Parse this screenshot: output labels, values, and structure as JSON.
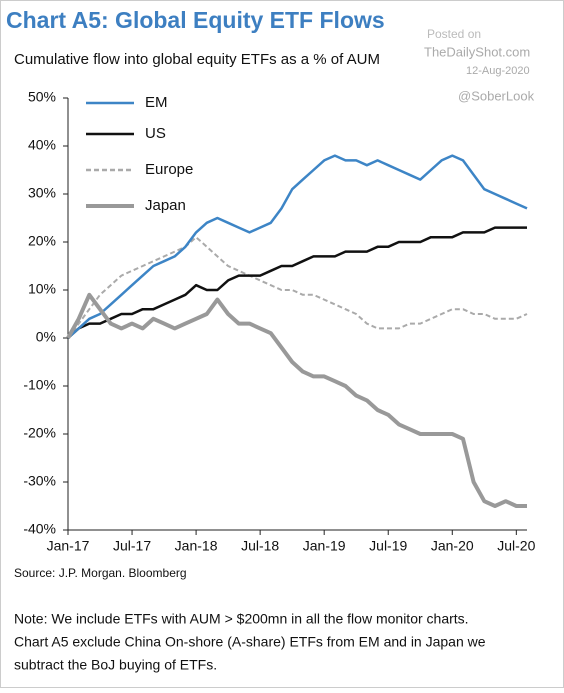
{
  "chart_data": {
    "type": "line",
    "title": "Chart A5: Global Equity ETF Flows",
    "subtitle": "Cumulative flow into global equity ETFs as a % of AUM",
    "watermark": [
      "Posted on",
      "TheDailyShot.com",
      "12-Aug-2020",
      "@SoberLook"
    ],
    "source": "Source: J.P. Morgan. Bloomberg",
    "note": [
      "Note: We include ETFs with AUM > $200mn in all the flow monitor charts.",
      "Chart A5 exclude China On-shore (A-share) ETFs from EM and in Japan we",
      "subtract the BoJ buying of ETFs."
    ],
    "x": [
      "2017-01",
      "2017-02",
      "2017-03",
      "2017-04",
      "2017-05",
      "2017-06",
      "2017-07",
      "2017-08",
      "2017-09",
      "2017-10",
      "2017-11",
      "2017-12",
      "2018-01",
      "2018-02",
      "2018-03",
      "2018-04",
      "2018-05",
      "2018-06",
      "2018-07",
      "2018-08",
      "2018-09",
      "2018-10",
      "2018-11",
      "2018-12",
      "2019-01",
      "2019-02",
      "2019-03",
      "2019-04",
      "2019-05",
      "2019-06",
      "2019-07",
      "2019-08",
      "2019-09",
      "2019-10",
      "2019-11",
      "2019-12",
      "2020-01",
      "2020-02",
      "2020-03",
      "2020-04",
      "2020-05",
      "2020-06",
      "2020-07",
      "2020-08"
    ],
    "xlim": [
      "2017-01",
      "2020-08"
    ],
    "xticks": [
      {
        "value": "2017-01",
        "label": "Jan-17"
      },
      {
        "value": "2017-07",
        "label": "Jul-17"
      },
      {
        "value": "2018-01",
        "label": "Jan-18"
      },
      {
        "value": "2018-07",
        "label": "Jul-18"
      },
      {
        "value": "2019-01",
        "label": "Jan-19"
      },
      {
        "value": "2019-07",
        "label": "Jul-19"
      },
      {
        "value": "2020-01",
        "label": "Jan-20"
      },
      {
        "value": "2020-07",
        "label": "Jul-20"
      }
    ],
    "ylim": [
      -40,
      50
    ],
    "yticks": [
      {
        "value": 50,
        "label": "50%"
      },
      {
        "value": 40,
        "label": "40%"
      },
      {
        "value": 30,
        "label": "30%"
      },
      {
        "value": 20,
        "label": "20%"
      },
      {
        "value": 10,
        "label": "10%"
      },
      {
        "value": 0,
        "label": "0%"
      },
      {
        "value": -10,
        "label": "-10%"
      },
      {
        "value": -20,
        "label": "-20%"
      },
      {
        "value": -30,
        "label": "-30%"
      },
      {
        "value": -40,
        "label": "-40%"
      }
    ],
    "grid": false,
    "legend": "top-left",
    "series": [
      {
        "name": "EM",
        "color": "#3d85c6",
        "values": [
          0,
          2,
          4,
          5,
          7,
          9,
          11,
          13,
          15,
          16,
          17,
          19,
          22,
          24,
          25,
          24,
          23,
          22,
          23,
          24,
          27,
          31,
          33,
          35,
          37,
          38,
          37,
          37,
          36,
          37,
          36,
          35,
          34,
          33,
          35,
          37,
          38,
          37,
          34,
          31,
          30,
          29,
          28,
          27
        ]
      },
      {
        "name": "US",
        "color": "#111111",
        "values": [
          0,
          2,
          3,
          3,
          4,
          5,
          5,
          6,
          6,
          7,
          8,
          9,
          11,
          10,
          10,
          12,
          13,
          13,
          13,
          14,
          15,
          15,
          16,
          17,
          17,
          17,
          18,
          18,
          18,
          19,
          19,
          20,
          20,
          20,
          21,
          21,
          21,
          22,
          22,
          22,
          23,
          23,
          23,
          23
        ]
      },
      {
        "name": "Europe",
        "color": "#aaaaaa",
        "dashed": true,
        "values": [
          0,
          3,
          6,
          9,
          11,
          13,
          14,
          15,
          16,
          17,
          18,
          19,
          21,
          19,
          17,
          15,
          14,
          13,
          12,
          11,
          10,
          10,
          9,
          9,
          8,
          7,
          6,
          5,
          3,
          2,
          2,
          2,
          3,
          3,
          4,
          5,
          6,
          6,
          5,
          5,
          4,
          4,
          4,
          5
        ]
      },
      {
        "name": "Japan",
        "color": "#999999",
        "values": [
          0,
          4,
          9,
          6,
          3,
          2,
          3,
          2,
          4,
          3,
          2,
          3,
          4,
          5,
          8,
          5,
          3,
          3,
          2,
          1,
          -2,
          -5,
          -7,
          -8,
          -8,
          -9,
          -10,
          -12,
          -13,
          -15,
          -16,
          -18,
          -19,
          -20,
          -20,
          -20,
          -20,
          -21,
          -30,
          -34,
          -35,
          -34,
          -35,
          -35
        ]
      }
    ]
  }
}
